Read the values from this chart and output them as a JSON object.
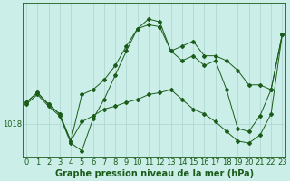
{
  "xlabel": "Graphe pression niveau de la mer (hPa)",
  "background_color": "#cceee8",
  "plot_bg_color": "#cceee8",
  "grid_color": "#aad4ce",
  "line_color": "#1a5c1a",
  "marker_color": "#1a5c1a",
  "ytick_label": "1018",
  "ytick_value": 1018,
  "xlim": [
    -0.3,
    23.3
  ],
  "ylim": [
    1014.5,
    1030.5
  ],
  "hours": [
    0,
    1,
    2,
    3,
    4,
    5,
    6,
    7,
    8,
    9,
    10,
    11,
    12,
    13,
    14,
    15,
    16,
    17,
    18,
    19,
    20,
    21,
    22,
    23
  ],
  "main_line": [
    1020.0,
    1021.0,
    1019.8,
    1018.8,
    1016.0,
    1015.2,
    1018.5,
    1020.5,
    1023.0,
    1025.5,
    1027.8,
    1028.8,
    1028.5,
    1025.5,
    1024.5,
    1025.0,
    1024.0,
    1024.5,
    1021.5,
    1017.5,
    1017.2,
    1018.8,
    1021.5,
    1027.2
  ],
  "line2": [
    1020.2,
    1021.2,
    1020.0,
    1019.0,
    1016.2,
    1018.2,
    1018.8,
    1019.5,
    1019.8,
    1020.2,
    1020.5,
    1021.0,
    1021.2,
    1021.5,
    1020.5,
    1019.5,
    1019.0,
    1018.2,
    1017.2,
    1016.2,
    1016.0,
    1016.8,
    1019.0,
    1027.2
  ],
  "line3": [
    1020.2,
    1021.2,
    1020.0,
    1019.0,
    1016.2,
    1021.0,
    1021.5,
    1022.5,
    1024.0,
    1026.0,
    1027.8,
    1028.2,
    1028.0,
    1025.5,
    1026.0,
    1026.5,
    1025.0,
    1025.0,
    1024.5,
    1023.5,
    1022.0,
    1022.0,
    1021.5,
    1027.2
  ],
  "fontsize_xlabel": 7,
  "tick_fontsize": 6
}
